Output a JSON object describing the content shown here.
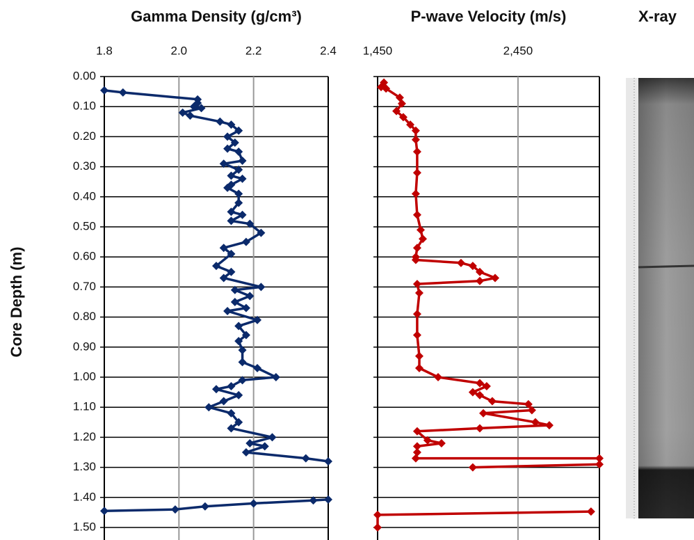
{
  "chart_data": [
    {
      "type": "line",
      "title": "Gamma Density (g/cm³)",
      "y_label": "Core Depth (m)",
      "y_inverted": true,
      "xlim": [
        1.8,
        2.4
      ],
      "xticks": [
        1.8,
        {
          "value": 2.0,
          "label": "2.0"
        },
        2.2,
        2.4
      ],
      "ylim": [
        0,
        1.5
      ],
      "yticks": [
        {
          "value": 0,
          "label": "0.00"
        },
        {
          "value": 0.1,
          "label": "0.10"
        },
        {
          "value": 0.2,
          "label": "0.20"
        },
        {
          "value": 0.3,
          "label": "0.30"
        },
        {
          "value": 0.4,
          "label": "0.40"
        },
        {
          "value": 0.5,
          "label": "0.50"
        },
        {
          "value": 0.6,
          "label": "0.60"
        },
        {
          "value": 0.7,
          "label": "0.70"
        },
        {
          "value": 0.8,
          "label": "0.80"
        },
        {
          "value": 0.9,
          "label": "0.90"
        },
        {
          "value": 1.0,
          "label": "1.00"
        },
        {
          "value": 1.1,
          "label": "1.10"
        },
        {
          "value": 1.2,
          "label": "1.20"
        },
        {
          "value": 1.3,
          "label": "1.30"
        },
        {
          "value": 1.4,
          "label": "1.40"
        },
        {
          "value": 1.5,
          "label": "1.50"
        }
      ],
      "grid": true,
      "series": [
        {
          "color": "#0b2a6b",
          "depth": [
            0.046,
            0.053,
            0.076,
            0.088,
            0.1,
            0.105,
            0.12,
            0.13,
            0.15,
            0.16,
            0.18,
            0.2,
            0.22,
            0.24,
            0.25,
            0.28,
            0.29,
            0.31,
            0.33,
            0.34,
            0.36,
            0.37,
            0.39,
            0.42,
            0.45,
            0.46,
            0.48,
            0.49,
            0.52,
            0.55,
            0.57,
            0.59,
            0.63,
            0.65,
            0.67,
            0.7,
            0.71,
            0.73,
            0.75,
            0.77,
            0.78,
            0.81,
            0.83,
            0.86,
            0.88,
            0.91,
            0.95,
            0.97,
            1.0,
            1.01,
            1.03,
            1.04,
            1.06,
            1.08,
            1.1,
            1.12,
            1.15,
            1.17,
            1.2,
            1.22,
            1.23,
            1.25,
            1.27,
            1.28,
            null,
            1.407,
            1.41,
            1.42,
            1.43,
            1.44,
            1.445
          ],
          "values": [
            1.8,
            1.85,
            2.05,
            2.05,
            2.04,
            2.06,
            2.01,
            2.03,
            2.11,
            2.14,
            2.16,
            2.13,
            2.15,
            2.13,
            2.16,
            2.17,
            2.12,
            2.16,
            2.14,
            2.17,
            2.14,
            2.13,
            2.16,
            2.16,
            2.14,
            2.17,
            2.14,
            2.19,
            2.22,
            2.18,
            2.12,
            2.14,
            2.1,
            2.14,
            2.12,
            2.22,
            2.15,
            2.19,
            2.15,
            2.18,
            2.13,
            2.21,
            2.16,
            2.18,
            2.16,
            2.17,
            2.17,
            2.21,
            2.26,
            2.17,
            2.14,
            2.1,
            2.16,
            2.12,
            2.08,
            2.14,
            2.16,
            2.14,
            2.25,
            2.19,
            2.23,
            2.18,
            2.34,
            2.4,
            null,
            2.4,
            2.36,
            2.2,
            2.07,
            1.99,
            1.8
          ]
        }
      ]
    },
    {
      "type": "line",
      "title": "P-wave Velocity (m/s)",
      "y_inverted": true,
      "xlim": [
        1450,
        3030
      ],
      "xticks": [
        {
          "value": 1450,
          "label": "1,450"
        },
        {
          "value": 2450,
          "label": "2,450"
        }
      ],
      "ylim": [
        0,
        1.5
      ],
      "yticks": [
        0,
        0.1,
        0.2,
        0.3,
        0.4,
        0.5,
        0.6,
        0.7,
        0.8,
        0.9,
        1.0,
        1.1,
        1.2,
        1.3,
        1.4,
        1.5
      ],
      "grid": true,
      "series": [
        {
          "color": "#c00000",
          "depth": [
            0.02,
            0.035,
            0.04,
            0.07,
            0.09,
            0.115,
            0.135,
            0.16,
            0.18,
            0.21,
            0.25,
            0.32,
            0.39,
            0.46,
            0.51,
            0.54,
            0.57,
            0.6,
            0.61,
            0.62,
            0.63,
            0.65,
            0.67,
            0.68,
            0.69,
            0.72,
            0.79,
            0.86,
            0.93,
            0.97,
            1.0,
            1.02,
            1.03,
            1.05,
            1.06,
            1.08,
            1.09,
            1.11,
            1.12,
            1.15,
            1.16,
            1.17,
            1.18,
            1.21,
            1.22,
            1.23,
            1.25,
            1.27,
            1.27,
            1.29,
            1.3,
            null,
            1.447,
            1.458,
            1.5
          ],
          "values": [
            1495,
            1475,
            1510,
            1608,
            1623,
            1584,
            1633,
            1683,
            1722,
            1722,
            1732,
            1732,
            1722,
            1732,
            1757,
            1772,
            1732,
            1722,
            1722,
            2044,
            2128,
            2178,
            2287,
            2178,
            1732,
            1747,
            1732,
            1732,
            1747,
            1747,
            1881,
            2178,
            2227,
            2128,
            2178,
            2267,
            2524,
            2549,
            2203,
            2574,
            2673,
            2178,
            1732,
            1806,
            1905,
            1732,
            1732,
            1722,
            3030,
            3030,
            2128,
            null,
            2970,
            1450,
            1450
          ]
        }
      ]
    }
  ],
  "image_panel": {
    "title": "X-ray"
  }
}
